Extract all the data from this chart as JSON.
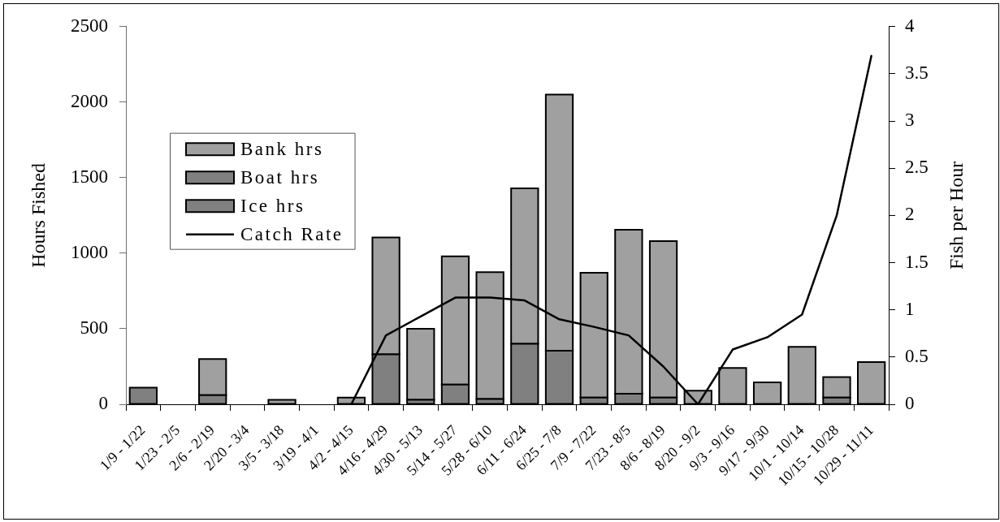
{
  "chart_data": {
    "type": "bar",
    "stacked": true,
    "categories": [
      "1/9 - 1/22",
      "1/23 - 2/5",
      "2/6 - 2/19",
      "2/20 - 3/4",
      "3/5 - 3/18",
      "3/19 - 4/1",
      "4/2 - 4/15",
      "4/16 - 4/29",
      "4/30 - 5/13",
      "5/14 - 5/27",
      "5/28 - 6/10",
      "6/11 - 6/24",
      "6/25 - 7/8",
      "7/9 - 7/22",
      "7/23 - 8/5",
      "8/6 - 8/19",
      "8/20 - 9/2",
      "9/3 - 9/16",
      "9/17 - 9/30",
      "10/1 - 10/14",
      "10/15 - 10/28",
      "10/29 - 11/11"
    ],
    "ylabel": "Hours Fished",
    "y2label": "Fish per Hour",
    "ylim": [
      0,
      2500
    ],
    "yticks": [
      0,
      500,
      1000,
      1500,
      2000,
      2500
    ],
    "y2lim": [
      0,
      4
    ],
    "y2ticks": [
      0,
      0.5,
      1,
      1.5,
      2,
      2.5,
      3,
      3.5,
      4
    ],
    "legend": "left",
    "marker": "none",
    "series": [
      {
        "name": "Ice hrs",
        "color": "#808080",
        "values": [
          110,
          null,
          60,
          null,
          null,
          null,
          null,
          null,
          null,
          null,
          null,
          null,
          null,
          null,
          null,
          null,
          null,
          null,
          null,
          null,
          null,
          null
        ]
      },
      {
        "name": "Boat hrs",
        "color": "#808080",
        "values": [
          null,
          null,
          null,
          null,
          null,
          null,
          null,
          330,
          30,
          130,
          35,
          400,
          355,
          45,
          70,
          45,
          null,
          null,
          null,
          null,
          45,
          null
        ]
      },
      {
        "name": "Bank hrs",
        "color": "#a0a0a0",
        "values": [
          null,
          null,
          240,
          null,
          30,
          null,
          45,
          775,
          470,
          850,
          840,
          1030,
          1695,
          825,
          1085,
          1035,
          90,
          240,
          145,
          380,
          135,
          280
        ]
      },
      {
        "name": "Catch Rate",
        "type": "line",
        "axis": "y2",
        "color": "#000000",
        "values": [
          null,
          null,
          null,
          null,
          null,
          null,
          0,
          0.73,
          0.93,
          1.13,
          1.13,
          1.1,
          0.9,
          0.82,
          0.73,
          0.4,
          0,
          0.58,
          0.71,
          0.95,
          2.0,
          3.69
        ]
      }
    ]
  }
}
